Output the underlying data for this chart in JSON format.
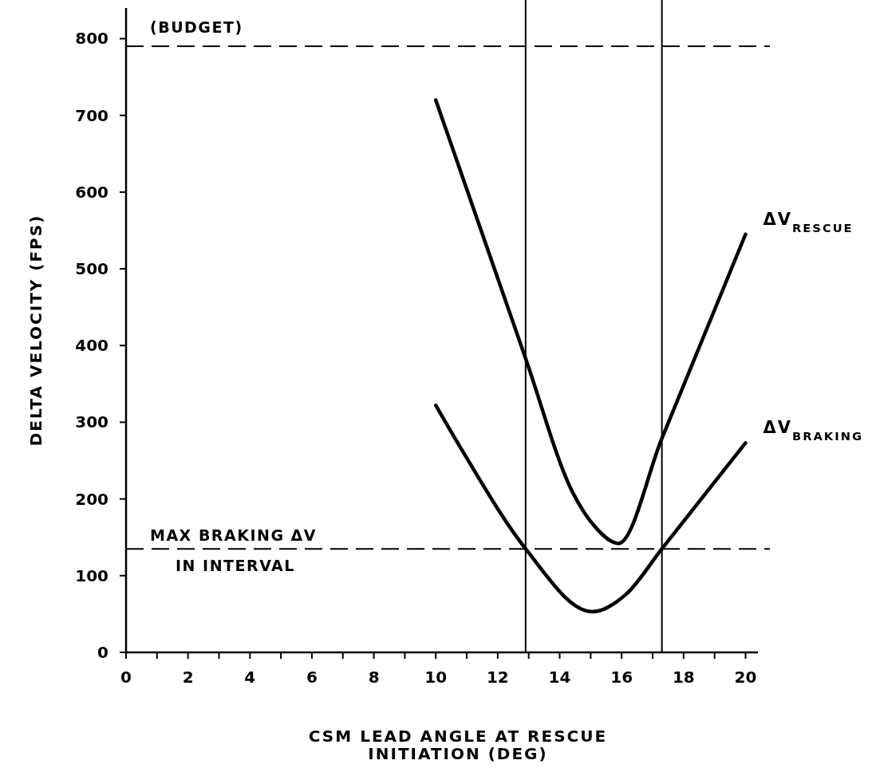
{
  "chart_data": {
    "type": "line",
    "xlabel": "CSM LEAD ANGLE AT RESCUE\nINITIATION (DEG)",
    "ylabel": "DELTA VELOCITY (FPS)",
    "xlim": [
      0,
      20.4
    ],
    "ylim": [
      0,
      840
    ],
    "xticks": [
      0,
      {
        "value": 1,
        "label": null
      },
      2,
      {
        "value": 3,
        "label": null
      },
      4,
      {
        "value": 5,
        "label": null
      },
      6,
      {
        "value": 7,
        "label": null
      },
      8,
      {
        "value": 9,
        "label": null
      },
      10,
      {
        "value": 11,
        "label": null
      },
      12,
      {
        "value": 13,
        "label": null
      },
      14,
      {
        "value": 15,
        "label": null
      },
      16,
      {
        "value": 17,
        "label": null
      },
      18,
      {
        "value": 19,
        "label": null
      },
      20
    ],
    "yticks": [
      0,
      100,
      200,
      300,
      400,
      500,
      600,
      700,
      800
    ],
    "grid": false,
    "legend": false,
    "line_style": "solid",
    "series": [
      {
        "name": "ΔV$_{RESCUE}$",
        "color": "#000000",
        "x": [
          10,
          12.9,
          14.4,
          15.2,
          15.9,
          17.3,
          20
        ],
        "values": [
          720,
          383,
          210,
          161,
          142,
          279,
          545
        ]
      },
      {
        "name": "ΔV$_{BRAKING}$",
        "color": "#000000",
        "x": [
          10,
          10.9,
          12.9,
          15.05,
          16.15,
          17.3,
          20
        ],
        "values": [
          322,
          260,
          135,
          53,
          76,
          135,
          273
        ]
      }
    ],
    "ref_lines": [
      {
        "axis": "y",
        "value": 790,
        "label": "(BUDGET)",
        "line_style": "dashed"
      },
      {
        "axis": "y",
        "value": 135,
        "label": "MAX BRAKING ΔV\nIN INTERVAL",
        "line_style": "dashed"
      },
      {
        "axis": "x",
        "value": 12.9,
        "line_style": "solid"
      },
      {
        "axis": "x",
        "value": 17.3,
        "line_style": "solid"
      }
    ]
  }
}
